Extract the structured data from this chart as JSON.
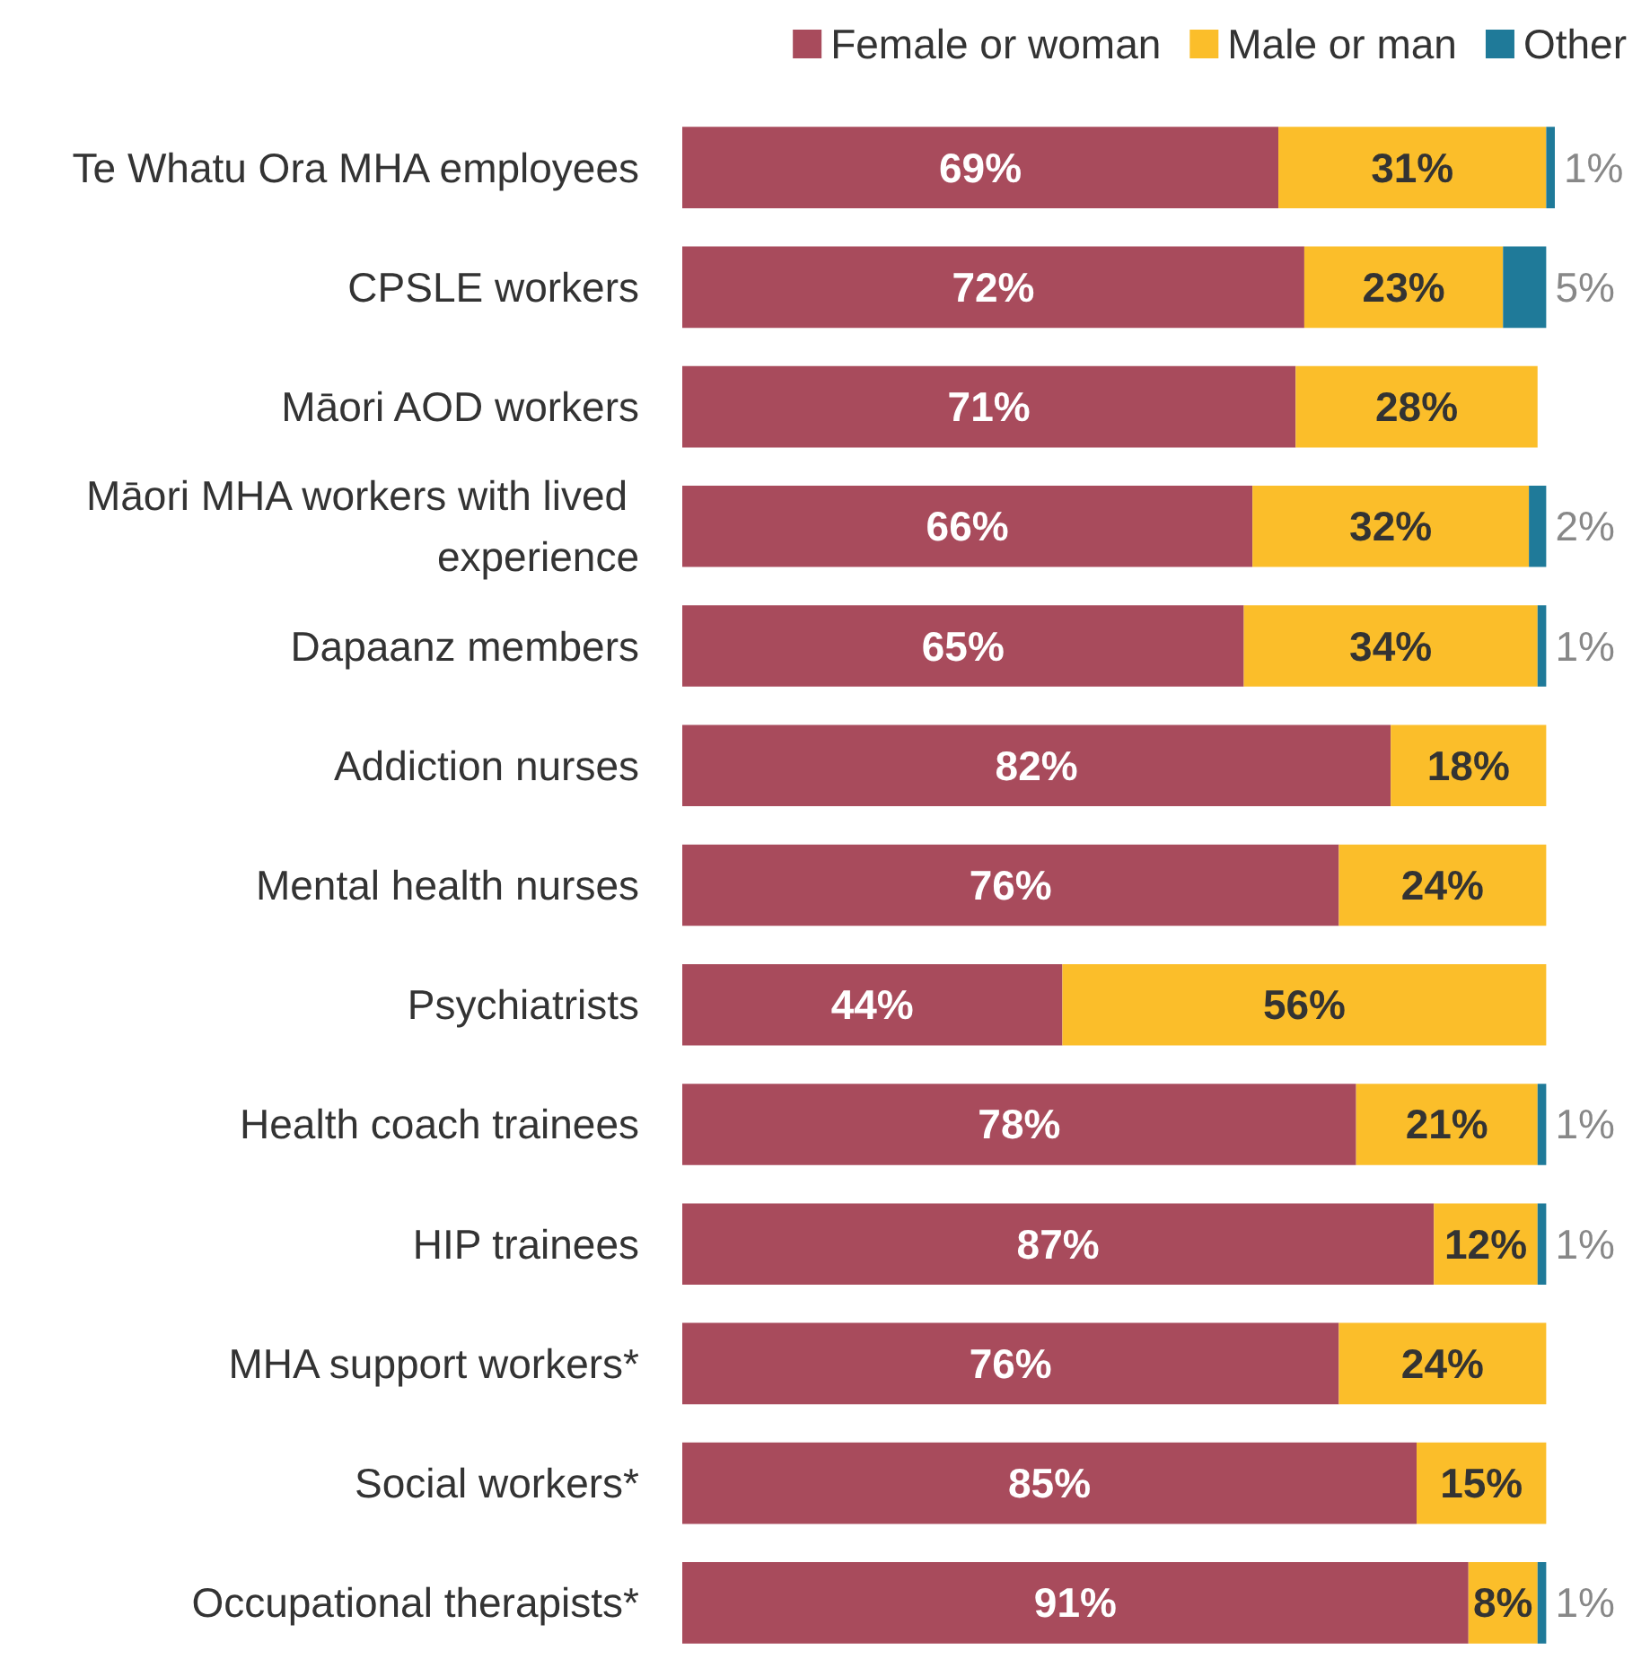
{
  "chart_data": {
    "type": "bar",
    "orientation": "horizontal",
    "stacked": true,
    "legend": "top right",
    "categories": [
      "Te Whatu Ora MHA employees",
      "CPSLE workers",
      "Māori AOD workers",
      "Māori MHA workers with lived experience",
      "Dapaanz members",
      "Addiction nurses",
      "Mental health nurses",
      "Psychiatrists",
      "Health coach trainees",
      "HIP trainees",
      "MHA support workers*",
      "Social workers*",
      "Occupational therapists*"
    ],
    "series": [
      {
        "name": "Female or woman",
        "color": "#a84b5c",
        "values": [
          69,
          72,
          71,
          66,
          65,
          82,
          76,
          44,
          78,
          87,
          76,
          85,
          91
        ],
        "value_labels": [
          "69%",
          "72%",
          "71%",
          "66%",
          "65%",
          "82%",
          "76%",
          "44%",
          "78%",
          "87%",
          "76%",
          "85%",
          "91%"
        ]
      },
      {
        "name": "Male or man",
        "color": "#fbbe2a",
        "values": [
          31,
          23,
          28,
          32,
          34,
          18,
          24,
          56,
          21,
          12,
          24,
          15,
          8
        ],
        "value_labels": [
          "31%",
          "23%",
          "28%",
          "32%",
          "34%",
          "18%",
          "24%",
          "56%",
          "21%",
          "12%",
          "24%",
          "15%",
          "8%"
        ]
      },
      {
        "name": "Other",
        "color": "#1f7a99",
        "values": [
          1,
          5,
          null,
          2,
          1,
          null,
          null,
          null,
          1,
          1,
          null,
          null,
          1
        ],
        "value_labels": [
          "1%",
          "5%",
          null,
          "2%",
          "1%",
          null,
          null,
          null,
          "1%",
          "1%",
          null,
          null,
          "1%"
        ]
      }
    ]
  }
}
